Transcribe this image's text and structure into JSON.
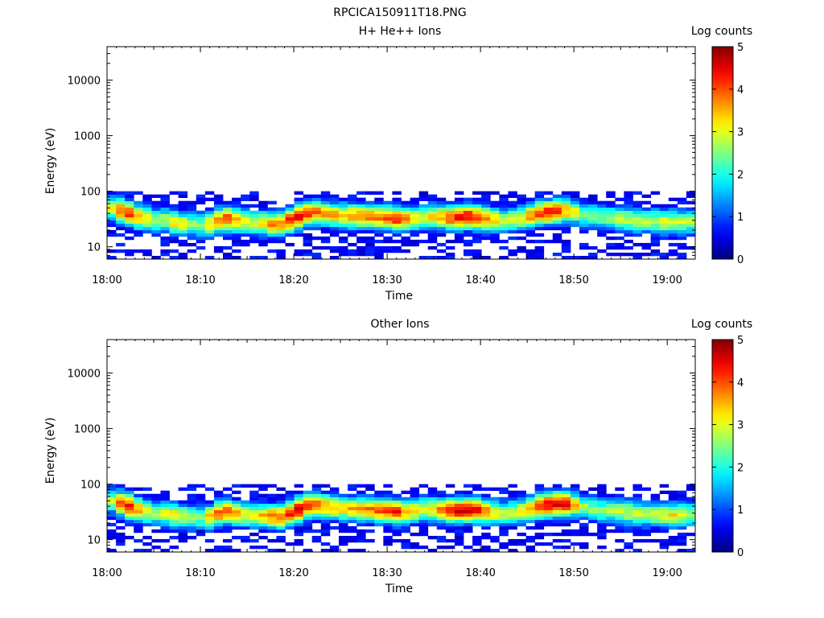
{
  "page_title": "RPCICA150911T18.PNG",
  "chart_data": [
    {
      "type": "heatmap",
      "title": "H+ He++ Ions",
      "xlabel": "Time",
      "ylabel": "Energy (eV)",
      "y_scale": "log",
      "ylim": [
        6,
        40000
      ],
      "xlim": [
        "18:00",
        "19:03"
      ],
      "x_ticks": [
        "18:00",
        "18:10",
        "18:20",
        "18:30",
        "18:40",
        "18:50",
        "19:00"
      ],
      "y_ticks": [
        "10",
        "100",
        "1000",
        "10000"
      ],
      "colorbar": {
        "label": "Log counts",
        "min": 0,
        "max": 5,
        "ticks": [
          "0",
          "1",
          "2",
          "3",
          "4",
          "5"
        ]
      },
      "energy_band_eV": [
        6,
        100
      ],
      "peak_energy_eV": [
        50,
        45,
        40,
        35,
        32,
        30,
        30,
        28,
        26,
        25,
        25,
        26,
        30,
        32,
        30,
        28,
        27,
        27,
        26,
        26,
        30,
        35,
        40,
        42,
        40,
        38,
        37,
        36,
        35,
        35,
        34,
        34,
        32,
        32,
        33,
        35,
        35,
        34,
        34,
        34,
        35,
        34,
        32,
        31,
        30,
        31,
        33,
        36,
        40,
        42,
        44,
        45,
        42,
        38,
        36,
        34,
        33,
        32,
        31,
        30,
        29,
        29,
        28,
        28,
        28,
        29
      ],
      "peak_log_counts": [
        3.0,
        4.0,
        4.2,
        3.6,
        3.0,
        2.6,
        2.8,
        3.2,
        3.0,
        2.6,
        2.5,
        3.2,
        3.8,
        4.0,
        3.4,
        3.0,
        3.0,
        3.3,
        3.6,
        3.8,
        4.2,
        4.4,
        4.1,
        3.8,
        3.6,
        3.4,
        3.4,
        3.6,
        3.7,
        3.8,
        3.8,
        4.0,
        4.2,
        3.6,
        3.2,
        3.0,
        3.2,
        3.6,
        4.1,
        4.3,
        4.4,
        4.2,
        3.8,
        3.2,
        2.8,
        2.9,
        3.1,
        3.6,
        4.0,
        4.2,
        4.1,
        3.6,
        3.0,
        2.6,
        2.6,
        2.5,
        2.6,
        2.7,
        2.8,
        2.8,
        2.7,
        2.8,
        3.0,
        3.0,
        2.8,
        2.7
      ]
    },
    {
      "type": "heatmap",
      "title": "Other Ions",
      "xlabel": "Time",
      "ylabel": "Energy (eV)",
      "y_scale": "log",
      "ylim": [
        6,
        40000
      ],
      "xlim": [
        "18:00",
        "19:03"
      ],
      "x_ticks": [
        "18:00",
        "18:10",
        "18:20",
        "18:30",
        "18:40",
        "18:50",
        "19:00"
      ],
      "y_ticks": [
        "10",
        "100",
        "1000",
        "10000"
      ],
      "colorbar": {
        "label": "Log counts",
        "min": 0,
        "max": 5,
        "ticks": [
          "0",
          "1",
          "2",
          "3",
          "4",
          "5"
        ]
      },
      "energy_band_eV": [
        6,
        100
      ],
      "peak_energy_eV": [
        50,
        45,
        40,
        35,
        32,
        30,
        30,
        28,
        26,
        25,
        25,
        26,
        30,
        32,
        30,
        28,
        27,
        27,
        26,
        26,
        30,
        35,
        40,
        42,
        40,
        38,
        37,
        36,
        35,
        35,
        34,
        34,
        32,
        32,
        33,
        35,
        35,
        34,
        34,
        34,
        35,
        34,
        32,
        31,
        30,
        31,
        33,
        36,
        40,
        42,
        44,
        45,
        42,
        38,
        36,
        34,
        33,
        32,
        31,
        30,
        29,
        29,
        28,
        28,
        28,
        29
      ],
      "peak_log_counts": [
        2.8,
        3.9,
        4.3,
        3.6,
        3.0,
        2.6,
        2.9,
        3.2,
        3.0,
        2.6,
        2.5,
        3.3,
        3.9,
        4.0,
        3.4,
        3.0,
        3.0,
        3.4,
        3.7,
        4.0,
        4.3,
        4.5,
        4.2,
        3.8,
        3.6,
        3.4,
        3.3,
        3.5,
        3.6,
        3.8,
        3.9,
        4.1,
        4.2,
        3.6,
        3.2,
        3.0,
        3.3,
        3.8,
        4.3,
        4.5,
        4.6,
        4.4,
        3.9,
        3.2,
        2.8,
        2.9,
        3.1,
        3.6,
        4.2,
        4.5,
        4.6,
        4.4,
        3.4,
        2.7,
        2.6,
        2.5,
        2.6,
        2.8,
        2.9,
        2.9,
        2.8,
        2.9,
        3.1,
        3.2,
        2.9,
        2.7
      ]
    }
  ]
}
